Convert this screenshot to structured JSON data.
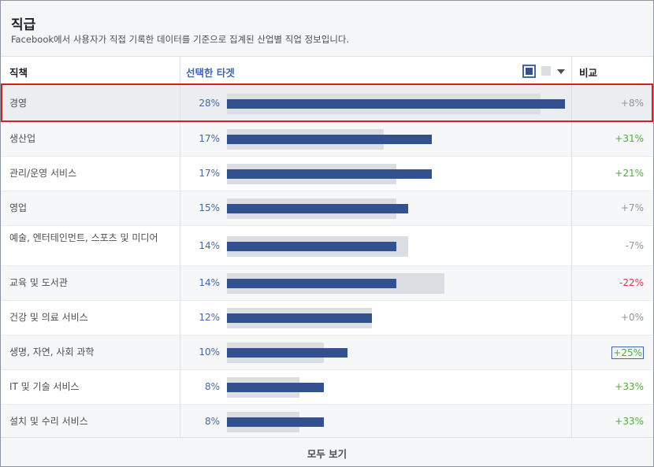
{
  "header": {
    "title": "직급",
    "subtitle": "Facebook에서 사용자가 직접 기록한 데이터를 기준으로 집계된 산업별 직업 정보입니다."
  },
  "columns": {
    "job": "직책",
    "target": "선택한 타겟",
    "compare": "비교"
  },
  "legend": {
    "selected_color": "#34518f",
    "baseline_color": "#dadde1",
    "dropdown_icon": "caret-down-icon"
  },
  "rows": [
    {
      "job": "경영",
      "pct": "28%",
      "selected": 28,
      "baseline": 26,
      "compare": "+8%",
      "tone": "neu"
    },
    {
      "job": "생산업",
      "pct": "17%",
      "selected": 17,
      "baseline": 13,
      "compare": "+31%",
      "tone": "pos"
    },
    {
      "job": "관리/운영 서비스",
      "pct": "17%",
      "selected": 17,
      "baseline": 14,
      "compare": "+21%",
      "tone": "pos"
    },
    {
      "job": "영업",
      "pct": "15%",
      "selected": 15,
      "baseline": 14,
      "compare": "+7%",
      "tone": "neu"
    },
    {
      "job": "예술, 엔터테인먼트, 스포츠 및 미디어",
      "pct": "14%",
      "selected": 14,
      "baseline": 15,
      "compare": "-7%",
      "tone": "neu"
    },
    {
      "job": "교육 및 도서관",
      "pct": "14%",
      "selected": 14,
      "baseline": 18,
      "compare": "-22%",
      "tone": "neg"
    },
    {
      "job": "건강 및 의료 서비스",
      "pct": "12%",
      "selected": 12,
      "baseline": 12,
      "compare": "+0%",
      "tone": "neu"
    },
    {
      "job": "생명, 자연, 사회 과학",
      "pct": "10%",
      "selected": 10,
      "baseline": 8,
      "compare": "+25%",
      "tone": "pos"
    },
    {
      "job": "IT 및 기술 서비스",
      "pct": "8%",
      "selected": 8,
      "baseline": 6,
      "compare": "+33%",
      "tone": "pos"
    },
    {
      "job": "설치 및 수리 서비스",
      "pct": "8%",
      "selected": 8,
      "baseline": 6,
      "compare": "+33%",
      "tone": "pos"
    }
  ],
  "footer": {
    "see_all": "모두 보기"
  }
}
